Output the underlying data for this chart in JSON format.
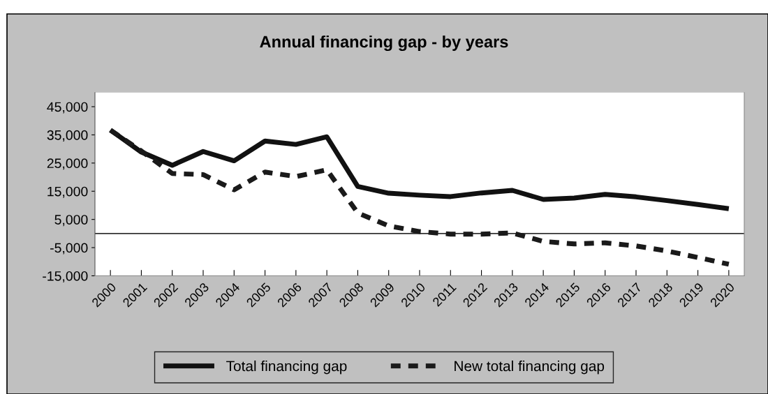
{
  "chart_data": {
    "type": "line",
    "title": "Annual financing gap - by years",
    "categories": [
      "2000",
      "2001",
      "2002",
      "2003",
      "2004",
      "2005",
      "2006",
      "2007",
      "2008",
      "2009",
      "2010",
      "2011",
      "2012",
      "2013",
      "2014",
      "2015",
      "2016",
      "2017",
      "2018",
      "2019",
      "2020"
    ],
    "series": [
      {
        "name": "Total financing gap",
        "color": "#111111",
        "line_style": "solid",
        "values": [
          36700,
          28900,
          24200,
          29100,
          25800,
          32800,
          31600,
          34300,
          16700,
          14300,
          13600,
          13100,
          14400,
          15300,
          12100,
          12600,
          13900,
          13000,
          11700,
          10300,
          8800
        ]
      },
      {
        "name": "New total financing gap",
        "color": "#1a1a1a",
        "line_style": "dashed",
        "values": [
          36700,
          29300,
          21300,
          20900,
          15500,
          21800,
          20200,
          22600,
          7300,
          2700,
          700,
          -200,
          -200,
          200,
          -2800,
          -3700,
          -3300,
          -4400,
          -6200,
          -8500,
          -10900
        ]
      }
    ],
    "ylim": [
      -15000,
      50000
    ],
    "yticks": [
      {
        "value": -15000,
        "label": "-15,000"
      },
      {
        "value": -5000,
        "label": "-5,000"
      },
      {
        "value": 5000,
        "label": "5,000"
      },
      {
        "value": 15000,
        "label": "15,000"
      },
      {
        "value": 25000,
        "label": "25,000"
      },
      {
        "value": 35000,
        "label": "35,000"
      },
      {
        "value": 45000,
        "label": "45,000"
      }
    ],
    "ref_lines": [
      {
        "axis": "y",
        "value": 0,
        "color": "#333333",
        "line_style": "solid"
      }
    ],
    "grid": false,
    "legend": "bottom",
    "marker": "none"
  }
}
